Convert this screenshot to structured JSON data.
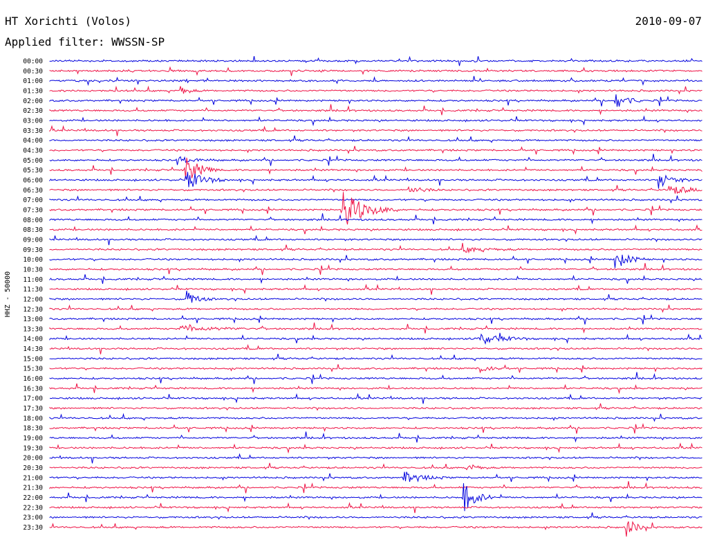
{
  "header": {
    "station": "HT Xorichti (Volos)",
    "filter": "Applied filter: WWSSN-SP",
    "date": "2010-09-07"
  },
  "chart_data": {
    "type": "line",
    "title": "HT Xorichti (Volos)",
    "subtitle": "Applied filter: WWSSN-SP",
    "ylabel": "HHZ - 50000",
    "row_labels": [
      "00:00",
      "00:30",
      "01:00",
      "01:30",
      "02:00",
      "02:30",
      "03:00",
      "03:30",
      "04:00",
      "04:30",
      "05:00",
      "05:30",
      "06:00",
      "06:30",
      "07:00",
      "07:30",
      "08:00",
      "08:30",
      "09:00",
      "09:30",
      "10:00",
      "10:30",
      "11:00",
      "11:30",
      "12:00",
      "12:30",
      "13:00",
      "13:30",
      "14:00",
      "14:30",
      "15:00",
      "15:30",
      "16:00",
      "16:30",
      "17:00",
      "17:30",
      "18:00",
      "18:30",
      "19:00",
      "19:30",
      "20:00",
      "20:30",
      "21:00",
      "21:30",
      "22:00",
      "22:30",
      "23:00",
      "23:30"
    ],
    "row_minutes": 30,
    "series_colors": [
      "#0000dd",
      "#ee1144"
    ],
    "grid": false,
    "events": [
      {
        "row": "01:30",
        "minute": 6.0,
        "amplitude": 6,
        "duration": 1.0
      },
      {
        "row": "02:00",
        "minute": 26.0,
        "amplitude": 14,
        "duration": 1.2
      },
      {
        "row": "05:00",
        "minute": 6.0,
        "amplitude": 4,
        "duration": 2.0
      },
      {
        "row": "05:30",
        "minute": 6.2,
        "amplitude": 22,
        "duration": 1.6
      },
      {
        "row": "06:00",
        "minute": 6.3,
        "amplitude": 14,
        "duration": 2.0
      },
      {
        "row": "06:00",
        "minute": 28.0,
        "amplitude": 12,
        "duration": 1.5
      },
      {
        "row": "06:30",
        "minute": 16.5,
        "amplitude": 6,
        "duration": 1.5
      },
      {
        "row": "06:30",
        "minute": 28.5,
        "amplitude": 6,
        "duration": 3.0
      },
      {
        "row": "07:30",
        "minute": 13.5,
        "amplitude": 26,
        "duration": 2.5
      },
      {
        "row": "09:30",
        "minute": 19.0,
        "amplitude": 4,
        "duration": 2.5
      },
      {
        "row": "10:00",
        "minute": 26.0,
        "amplitude": 14,
        "duration": 1.5
      },
      {
        "row": "12:00",
        "minute": 6.3,
        "amplitude": 12,
        "duration": 1.2
      },
      {
        "row": "13:30",
        "minute": 6.0,
        "amplitude": 4,
        "duration": 4.0
      },
      {
        "row": "14:00",
        "minute": 19.7,
        "amplitude": 9,
        "duration": 2.5
      },
      {
        "row": "15:30",
        "minute": 19.7,
        "amplitude": 6,
        "duration": 1.5
      },
      {
        "row": "20:30",
        "minute": 19.3,
        "amplitude": 5,
        "duration": 1.0
      },
      {
        "row": "21:00",
        "minute": 16.3,
        "amplitude": 8,
        "duration": 2.0
      },
      {
        "row": "22:00",
        "minute": 19.0,
        "amplitude": 22,
        "duration": 1.5
      },
      {
        "row": "23:30",
        "minute": 26.5,
        "amplitude": 14,
        "duration": 1.2
      }
    ]
  }
}
